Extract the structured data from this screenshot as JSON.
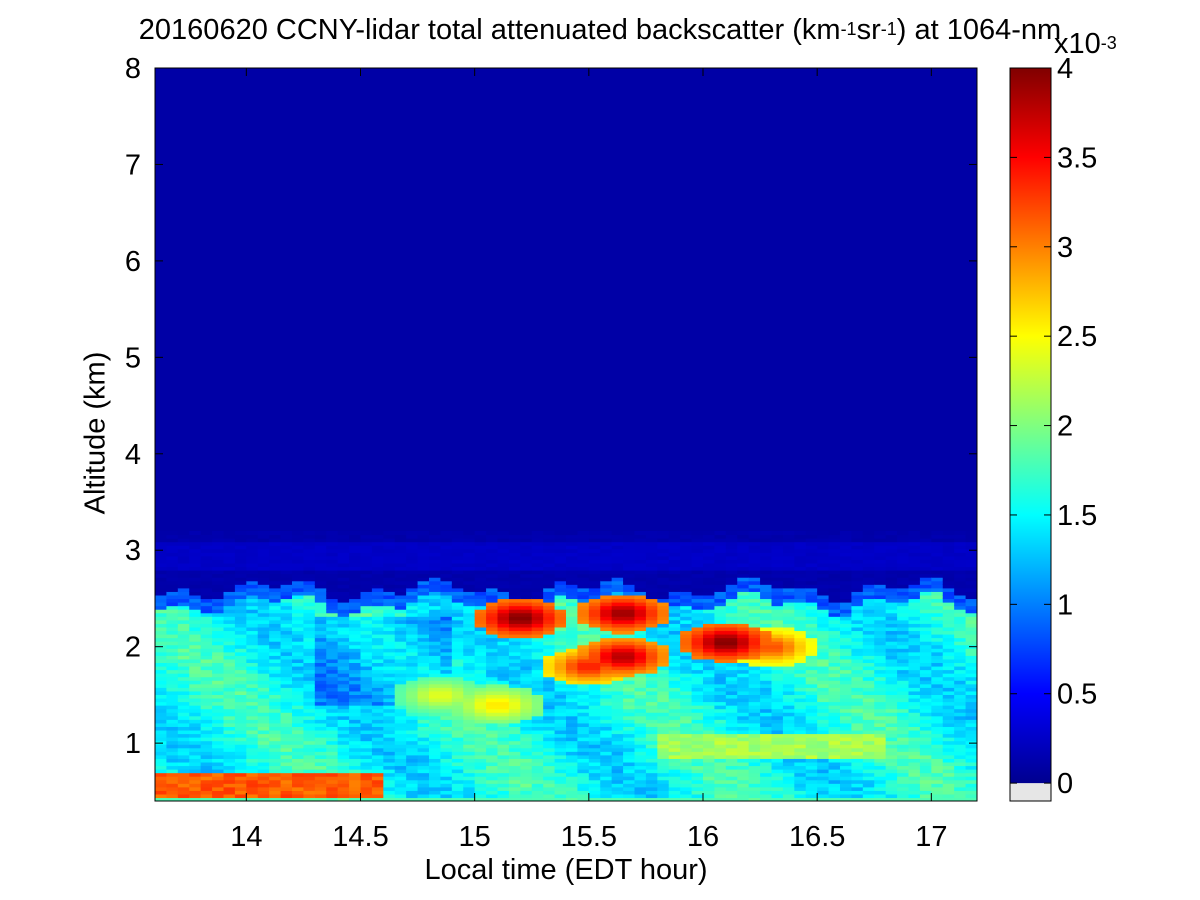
{
  "title": {
    "prefix": "20160620 CCNY-lidar total attenuated backscatter (km",
    "sup1": "-1",
    "mid": "sr",
    "sup2": "-1",
    "suffix": ") at 1064-nm"
  },
  "colorbar_exponent": {
    "base": "x10",
    "power": "-3"
  },
  "chart_data": {
    "type": "heatmap",
    "xlabel": "Local time (EDT hour)",
    "ylabel": "Altitude (km)",
    "xlim": [
      13.6,
      17.2
    ],
    "ylim": [
      0.4,
      8
    ],
    "xticks": [
      14,
      14.5,
      15,
      15.5,
      16,
      16.5,
      17
    ],
    "xtick_labels": [
      "14",
      "14.5",
      "15",
      "15.5",
      "16",
      "16.5",
      "17"
    ],
    "yticks": [
      1,
      2,
      3,
      4,
      5,
      6,
      7,
      8
    ],
    "ytick_labels": [
      "1",
      "2",
      "3",
      "4",
      "5",
      "6",
      "7",
      "8"
    ],
    "colorbar": {
      "clim": [
        -0.1,
        4
      ],
      "ticks": [
        0,
        0.5,
        1,
        1.5,
        2,
        2.5,
        3,
        3.5,
        4
      ],
      "tick_labels": [
        "0",
        "0.5",
        "1",
        "1.5",
        "2",
        "2.5",
        "3",
        "3.5",
        "4"
      ],
      "colormap": "jet",
      "below_range_color": "#e6e6e6"
    },
    "background_value": 0.15,
    "layers": [
      {
        "name": "aerosol-boundary-layer",
        "x_range": [
          13.6,
          17.2
        ],
        "top_km": 2.45,
        "base_km": 0.4,
        "value": 1.55
      },
      {
        "name": "near-surface-layer",
        "x_range": [
          13.6,
          14.6
        ],
        "y_range": [
          0.45,
          0.7
        ],
        "value": 3.3
      },
      {
        "name": "low-level-enhancement",
        "x_range": [
          15.8,
          16.8
        ],
        "y_range": [
          0.85,
          1.1
        ],
        "value": 2.3
      }
    ],
    "hotspots": [
      {
        "x": 15.2,
        "y": 2.3,
        "value": 4.0
      },
      {
        "x": 15.5,
        "y": 1.8,
        "value": 3.4
      },
      {
        "x": 15.65,
        "y": 2.35,
        "value": 3.9
      },
      {
        "x": 15.65,
        "y": 1.9,
        "value": 3.8
      },
      {
        "x": 16.1,
        "y": 2.05,
        "value": 4.0
      },
      {
        "x": 16.3,
        "y": 2.0,
        "value": 3.2
      },
      {
        "x": 14.85,
        "y": 1.5,
        "value": 2.4
      },
      {
        "x": 15.1,
        "y": 1.4,
        "value": 2.6
      }
    ],
    "colors": {
      "background": "#0a28c8",
      "min": "#00008f",
      "max": "#800000"
    }
  }
}
